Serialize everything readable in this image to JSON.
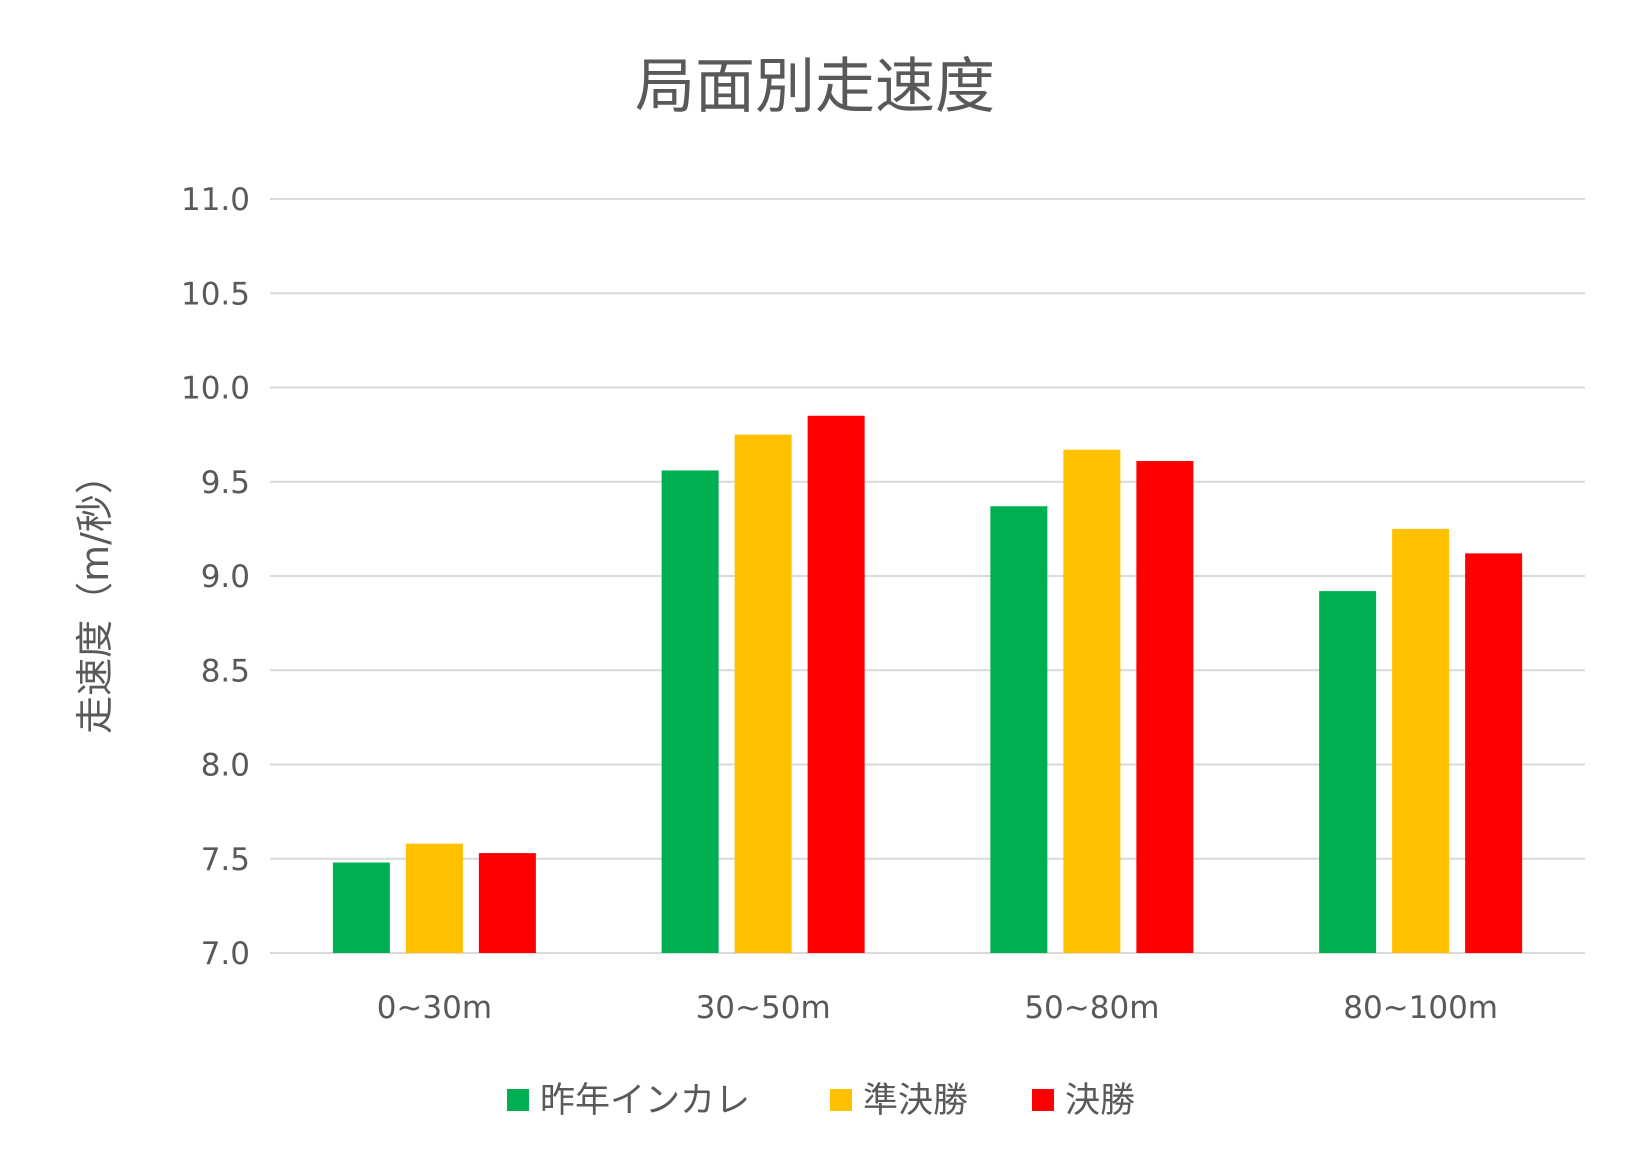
{
  "chart_data": {
    "type": "bar",
    "title": "局面別走速度",
    "xlabel": "",
    "ylabel": "走速度（m/秒）",
    "ylim": [
      7.0,
      11.0
    ],
    "yticks": [
      "7.0",
      "7.5",
      "8.0",
      "8.5",
      "9.0",
      "9.5",
      "10.0",
      "10.5",
      "11.0"
    ],
    "grid": true,
    "legend_position": "bottom",
    "categories": [
      "0~30m",
      "30~50m",
      "50~80m",
      "80~100m"
    ],
    "series": [
      {
        "name": "昨年インカレ",
        "color": "#00b050",
        "values": [
          7.48,
          9.56,
          9.37,
          8.92
        ]
      },
      {
        "name": "準決勝",
        "color": "#ffc000",
        "values": [
          7.58,
          9.75,
          9.67,
          9.25
        ]
      },
      {
        "name": "決勝",
        "color": "#ff0000",
        "values": [
          7.53,
          9.85,
          9.61,
          9.12
        ]
      }
    ]
  }
}
